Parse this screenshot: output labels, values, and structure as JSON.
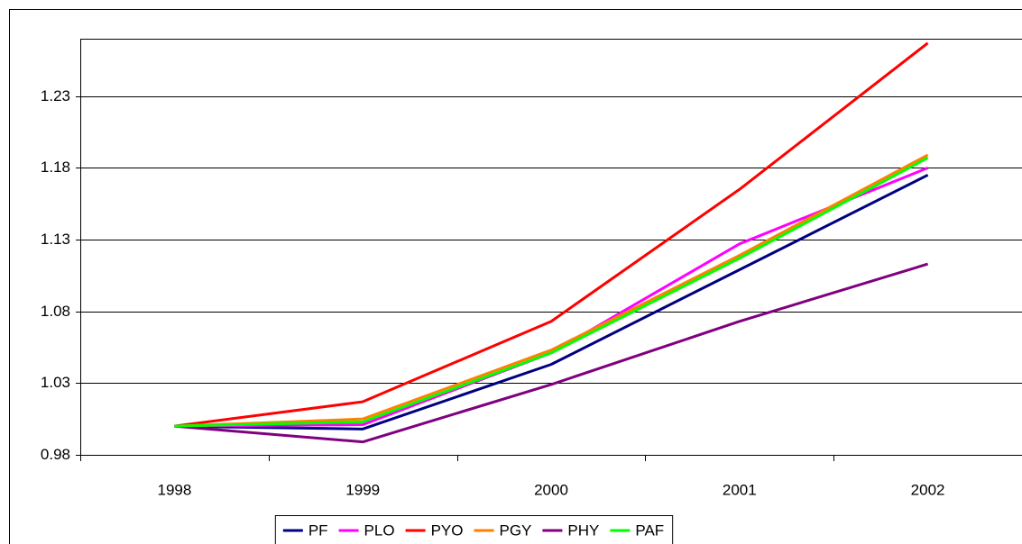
{
  "chart_data": {
    "type": "line",
    "categories": [
      "1998",
      "1999",
      "2000",
      "2001",
      "2002"
    ],
    "series": [
      {
        "name": "PF",
        "color": "#000080",
        "values": [
          1.0,
          0.998,
          1.043,
          1.109,
          1.175
        ]
      },
      {
        "name": "PLO",
        "color": "#ff00ff",
        "values": [
          1.0,
          1.001,
          1.051,
          1.127,
          1.18
        ]
      },
      {
        "name": "PYO",
        "color": "#ff0000",
        "values": [
          1.0,
          1.017,
          1.073,
          1.165,
          1.267
        ]
      },
      {
        "name": "PGY",
        "color": "#ff8000",
        "values": [
          1.0,
          1.005,
          1.053,
          1.119,
          1.189
        ]
      },
      {
        "name": "PHY",
        "color": "#800080",
        "values": [
          1.0,
          0.989,
          1.029,
          1.073,
          1.113
        ]
      },
      {
        "name": "PAF",
        "color": "#00ff00",
        "values": [
          1.0,
          1.003,
          1.051,
          1.117,
          1.187
        ]
      }
    ],
    "ylim": [
      0.98,
      1.27
    ],
    "yticks": [
      0.98,
      1.03,
      1.08,
      1.13,
      1.18,
      1.23
    ],
    "grid": true,
    "legend": "bottom"
  }
}
